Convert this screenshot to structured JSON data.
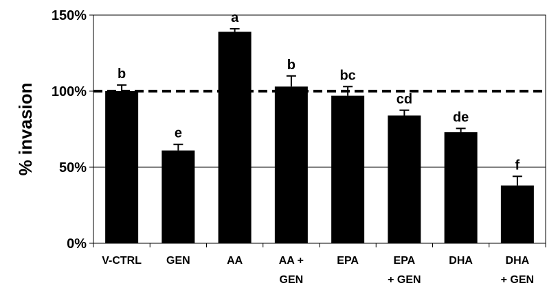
{
  "chart_data": {
    "type": "bar",
    "title": "",
    "xlabel": "",
    "ylabel": "% invasion",
    "ylim": [
      0,
      150
    ],
    "y_ticks": [
      "0%",
      "50%",
      "100%",
      "150%"
    ],
    "y_tick_values": [
      0,
      50,
      100,
      150
    ],
    "categories": [
      [
        "V-CTRL"
      ],
      [
        "GEN"
      ],
      [
        "AA"
      ],
      [
        "AA +",
        "GEN"
      ],
      [
        "EPA"
      ],
      [
        "EPA",
        "+ GEN"
      ],
      [
        "DHA"
      ],
      [
        "DHA",
        "+ GEN"
      ]
    ],
    "values": [
      100,
      61,
      139,
      103,
      97,
      84,
      73,
      38
    ],
    "error": [
      4,
      4,
      2,
      7,
      6,
      3.5,
      2.5,
      6
    ],
    "significance_letters": [
      "b",
      "e",
      "a",
      "b",
      "bc",
      "cd",
      "de",
      "f"
    ],
    "reference_line": {
      "value": 100,
      "style": "dashed"
    },
    "grid": true,
    "legend": "none",
    "colors": {
      "bar": "#000000",
      "grid": "#000000",
      "background": "#ffffff"
    }
  }
}
